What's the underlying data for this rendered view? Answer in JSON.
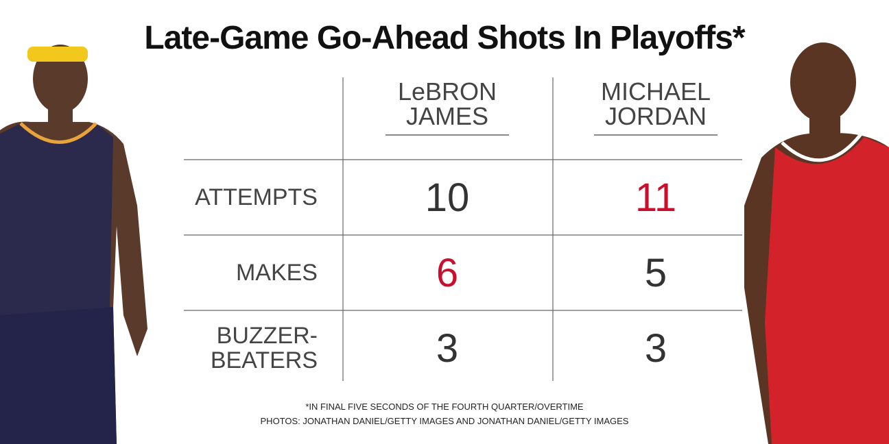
{
  "title": "Late-Game Go-Ahead Shots In Playoffs*",
  "columns": [
    "LeBRON JAMES",
    "MICHAEL JORDAN"
  ],
  "rows": [
    {
      "label": "ATTEMPTS",
      "values": [
        "10",
        "11"
      ],
      "colors": [
        "#333333",
        "#c8102e"
      ]
    },
    {
      "label": "MAKES",
      "values": [
        "6",
        "5"
      ],
      "colors": [
        "#c8102e",
        "#333333"
      ]
    },
    {
      "label": "BUZZER-BEATERS",
      "values": [
        "3",
        "3"
      ],
      "colors": [
        "#333333",
        "#333333"
      ]
    }
  ],
  "footnote": "*IN FINAL FIVE SECONDS OF THE FOURTH QUARTER/OVERTIME",
  "credit": "PHOTOS: JONATHAN DANIEL/GETTY IMAGES AND JONATHAN DANIEL/GETTY IMAGES"
}
